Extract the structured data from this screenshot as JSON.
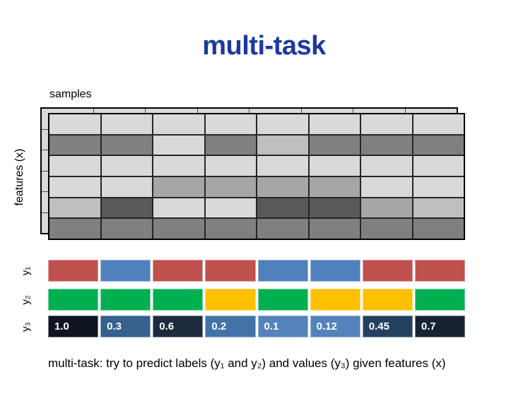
{
  "title": {
    "text": "multi-task",
    "color": "#1c399e"
  },
  "matrix": {
    "samples_label": "samples",
    "features_label": "features (x)",
    "back_sheet_color": "#d9d9d9",
    "rows": [
      [
        "#d9d9d9",
        "#d9d9d9",
        "#d9d9d9",
        "#d9d9d9",
        "#d9d9d9",
        "#d9d9d9",
        "#d9d9d9",
        "#d9d9d9"
      ],
      [
        "#808080",
        "#808080",
        "#d9d9d9",
        "#808080",
        "#bfbfbf",
        "#808080",
        "#808080",
        "#808080"
      ],
      [
        "#d9d9d9",
        "#d9d9d9",
        "#d9d9d9",
        "#d9d9d9",
        "#d9d9d9",
        "#d9d9d9",
        "#d9d9d9",
        "#d9d9d9"
      ],
      [
        "#d9d9d9",
        "#d9d9d9",
        "#a6a6a6",
        "#a6a6a6",
        "#a6a6a6",
        "#a6a6a6",
        "#d9d9d9",
        "#d9d9d9"
      ],
      [
        "#bfbfbf",
        "#595959",
        "#d9d9d9",
        "#d9d9d9",
        "#595959",
        "#595959",
        "#a6a6a6",
        "#bfbfbf"
      ],
      [
        "#808080",
        "#808080",
        "#808080",
        "#808080",
        "#808080",
        "#808080",
        "#808080",
        "#808080"
      ]
    ]
  },
  "bars": [
    {
      "id": "y1",
      "label": "y₁",
      "cells": [
        {
          "color": "#c0504d"
        },
        {
          "color": "#4f81bd"
        },
        {
          "color": "#c0504d"
        },
        {
          "color": "#c0504d"
        },
        {
          "color": "#4f81bd"
        },
        {
          "color": "#4f81bd"
        },
        {
          "color": "#c0504d"
        },
        {
          "color": "#c0504d"
        }
      ]
    },
    {
      "id": "y2",
      "label": "y₂",
      "cells": [
        {
          "color": "#00b050"
        },
        {
          "color": "#00b050"
        },
        {
          "color": "#00b050"
        },
        {
          "color": "#ffc000"
        },
        {
          "color": "#00b050"
        },
        {
          "color": "#ffc000"
        },
        {
          "color": "#ffc000"
        },
        {
          "color": "#00b050"
        }
      ]
    },
    {
      "id": "y3",
      "label": "y₃",
      "cells": [
        {
          "color": "#0e151f",
          "value": "1.0"
        },
        {
          "color": "#36608e",
          "value": "0.3"
        },
        {
          "color": "#1d2b3f",
          "value": "0.6"
        },
        {
          "color": "#4373a6",
          "value": "0.2"
        },
        {
          "color": "#5482ba",
          "value": "0.1"
        },
        {
          "color": "#5482ba",
          "value": "0.12"
        },
        {
          "color": "#25405f",
          "value": "0.45"
        },
        {
          "color": "#182332",
          "value": "0.7"
        }
      ]
    }
  ],
  "caption": "multi-task: try to predict labels (y₁ and y₂) and values (y₃) given features (x)"
}
